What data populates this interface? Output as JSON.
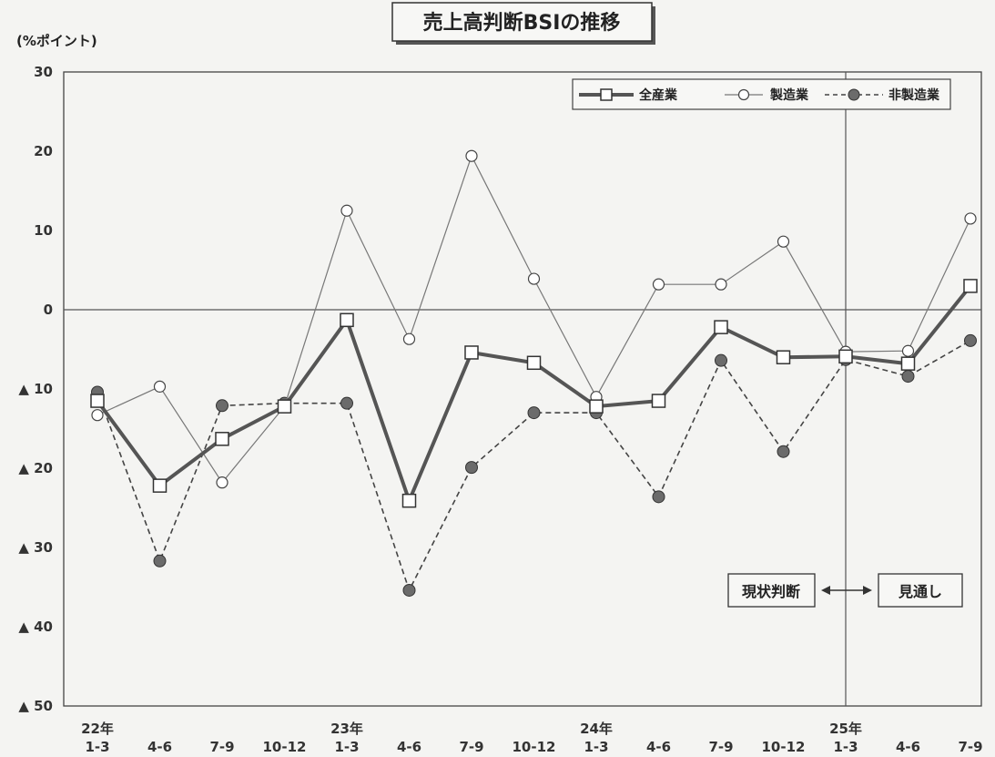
{
  "chart_data": {
    "type": "line",
    "title": "売上高判断BSIの推移",
    "unit_label": "(%ポイント)",
    "categories": [
      "1-3",
      "4-6",
      "7-9",
      "10-12",
      "1-3",
      "4-6",
      "7-9",
      "10-12",
      "1-3",
      "4-6",
      "7-9",
      "10-12",
      "1-3",
      "4-6",
      "7-9"
    ],
    "year_labels": [
      {
        "index": 0,
        "label": "22年"
      },
      {
        "index": 4,
        "label": "23年"
      },
      {
        "index": 8,
        "label": "24年"
      },
      {
        "index": 12,
        "label": "25年"
      }
    ],
    "y_ticks": [
      {
        "value": 30,
        "label": "30"
      },
      {
        "value": 20,
        "label": "20"
      },
      {
        "value": 10,
        "label": "10"
      },
      {
        "value": 0,
        "label": "0"
      },
      {
        "value": -10,
        "label": "▲ 10"
      },
      {
        "value": -20,
        "label": "▲ 20"
      },
      {
        "value": -30,
        "label": "▲ 30"
      },
      {
        "value": -40,
        "label": "▲ 40"
      },
      {
        "value": -50,
        "label": "▲ 50"
      }
    ],
    "ylim": [
      -50,
      30
    ],
    "forecast_divider_index": 12,
    "series": [
      {
        "name": "全産業",
        "style": "thick-square",
        "color": "#555555",
        "values": [
          -11.5,
          -22.2,
          -16.3,
          -12.2,
          -1.3,
          -24.1,
          -5.4,
          -6.7,
          -12.2,
          -11.5,
          -2.2,
          -6.0,
          -5.9,
          -6.8,
          3.0
        ]
      },
      {
        "name": "製造業",
        "style": "thin-circle",
        "color": "#777777",
        "values": [
          -13.3,
          -9.7,
          -21.8,
          -12.2,
          12.5,
          -3.7,
          19.4,
          3.9,
          -11.0,
          3.2,
          3.2,
          8.6,
          -5.3,
          -5.2,
          11.5
        ]
      },
      {
        "name": "非製造業",
        "style": "dashed-dot",
        "color": "#444444",
        "values": [
          -10.4,
          -31.7,
          -12.1,
          -11.8,
          -11.8,
          -35.4,
          -19.9,
          -13.0,
          -13.0,
          -23.6,
          -6.4,
          -17.9,
          -6.3,
          -8.4,
          -3.9
        ]
      }
    ],
    "annotations": {
      "current": "現状判断",
      "outlook": "見通し"
    }
  }
}
